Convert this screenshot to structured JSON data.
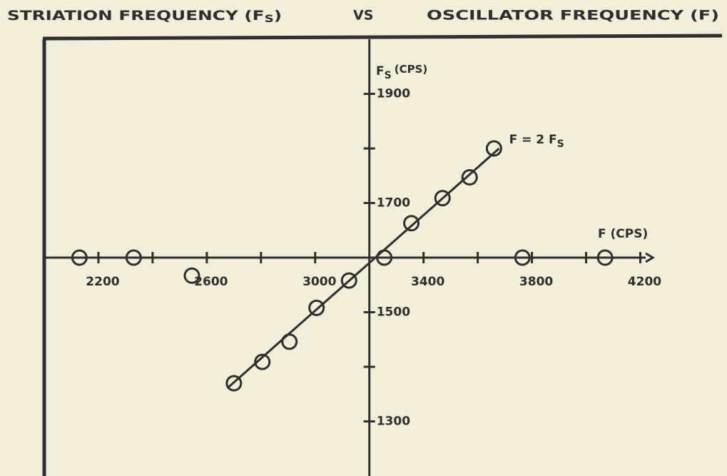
{
  "chart_data": {
    "type": "scatter",
    "title": [
      "STRIATION FREQUENCY (F",
      "S",
      ")",
      "VS",
      "OSCILLATOR FREQUENCY (F)"
    ],
    "x_label": "F (CPS)",
    "y_label": [
      "F",
      "S",
      "(CPS)"
    ],
    "annotation": [
      "F = 2 F",
      "S"
    ],
    "xlim": [
      2000,
      4520
    ],
    "ylim": [
      1200,
      2000
    ],
    "xticks": [
      2200,
      2600,
      3000,
      3400,
      3800,
      4200
    ],
    "xminor": [
      2400,
      2800,
      3600,
      4000
    ],
    "yticks": [
      1300,
      1500,
      1700,
      1900
    ],
    "yminor": [
      1400,
      1800
    ],
    "x": [
      2130,
      2330,
      2545,
      2700,
      2805,
      2905,
      3005,
      3125,
      3255,
      3355,
      3470,
      3570,
      3660,
      3765,
      4070
    ],
    "values": [
      1600,
      1600,
      1567,
      1370,
      1409,
      1446,
      1508,
      1558,
      1600,
      1663,
      1709,
      1747,
      1800,
      1600,
      1600
    ],
    "line": {
      "x": [
        2676,
        3679
      ],
      "values": [
        1361,
        1800
      ]
    },
    "color": "#2e2e2e"
  }
}
